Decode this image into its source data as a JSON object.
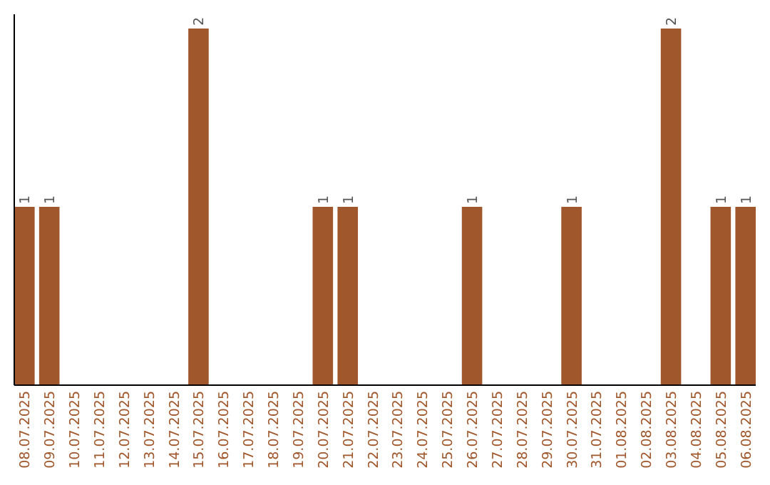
{
  "chart_data": {
    "type": "bar",
    "categories": [
      "08.07.2025",
      "09.07.2025",
      "10.07.2025",
      "11.07.2025",
      "12.07.2025",
      "13.07.2025",
      "14.07.2025",
      "15.07.2025",
      "16.07.2025",
      "17.07.2025",
      "18.07.2025",
      "19.07.2025",
      "20.07.2025",
      "21.07.2025",
      "22.07.2025",
      "23.07.2025",
      "24.07.2025",
      "25.07.2025",
      "26.07.2025",
      "27.07.2025",
      "28.07.2025",
      "29.07.2025",
      "30.07.2025",
      "31.07.2025",
      "01.08.2025",
      "02.08.2025",
      "03.08.2025",
      "04.08.2025",
      "05.08.2025",
      "06.08.2025"
    ],
    "values": [
      1,
      1,
      0,
      0,
      0,
      0,
      0,
      2,
      0,
      0,
      0,
      0,
      1,
      1,
      0,
      0,
      0,
      0,
      1,
      0,
      0,
      0,
      1,
      0,
      0,
      0,
      2,
      0,
      1,
      1
    ],
    "value_labels": [
      "1",
      "1",
      null,
      null,
      null,
      null,
      null,
      "2",
      null,
      null,
      null,
      null,
      "1",
      "1",
      null,
      null,
      null,
      null,
      "1",
      null,
      null,
      null,
      "1",
      null,
      null,
      null,
      "2",
      null,
      "1",
      "1"
    ],
    "color": "#a0572b",
    "relative": false
  }
}
